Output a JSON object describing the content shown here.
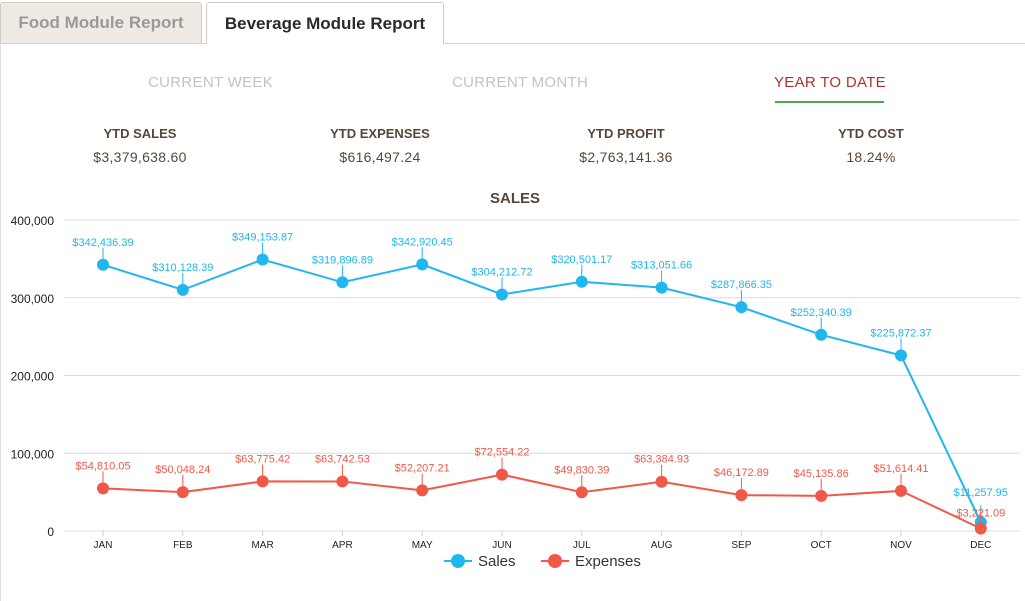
{
  "tabs": [
    {
      "label": "Food Module Report",
      "active": false
    },
    {
      "label": "Beverage Module Report",
      "active": true
    }
  ],
  "periods": {
    "current_week": "CURRENT WEEK",
    "current_month": "CURRENT MONTH",
    "year_to_date": "YEAR TO DATE"
  },
  "stats": [
    {
      "label": "YTD SALES",
      "value": "$3,379,638.60"
    },
    {
      "label": "YTD EXPENSES",
      "value": "$616,497.24"
    },
    {
      "label": "YTD PROFIT",
      "value": "$2,763,141.36"
    },
    {
      "label": "YTD COST",
      "value": "18.24%"
    }
  ],
  "colors": {
    "sales": "#20b6ee",
    "expenses": "#f0584a",
    "active_period": "#b3312b",
    "underline": "#4aa84c",
    "label_brown": "#5a4636"
  },
  "chart_data": {
    "type": "line",
    "title": "SALES",
    "categories": [
      "JAN",
      "FEB",
      "MAR",
      "APR",
      "MAY",
      "JUN",
      "JUL",
      "AUG",
      "SEP",
      "OCT",
      "NOV",
      "DEC"
    ],
    "ylim": [
      0,
      400000
    ],
    "yticks": [
      0,
      100000,
      200000,
      300000,
      400000
    ],
    "ytick_labels": [
      "0",
      "100,000",
      "200,000",
      "300,000",
      "400,000"
    ],
    "grid": true,
    "legend_position": "bottom",
    "series": [
      {
        "name": "Sales",
        "values": [
          342436.39,
          310128.39,
          349153.87,
          319896.89,
          342920.45,
          304212.72,
          320501.17,
          313051.66,
          287866.35,
          252340.39,
          225872.37,
          11257.95
        ],
        "labels": [
          "$342,436.39",
          "$310,128.39",
          "$349,153.87",
          "$319,896.89",
          "$342,920.45",
          "$304,212.72",
          "$320,501.17",
          "$313,051.66",
          "$287,866.35",
          "$252,340.39",
          "$225,872.37",
          "$11,257.95"
        ]
      },
      {
        "name": "Expenses",
        "values": [
          54810.05,
          50048.24,
          63775.42,
          63742.53,
          52207.21,
          72554.22,
          49830.39,
          63384.93,
          46172.89,
          45135.86,
          51614.41,
          3221.09
        ],
        "labels": [
          "$54,810.05",
          "$50,048.24",
          "$63,775.42",
          "$63,742.53",
          "$52,207.21",
          "$72,554.22",
          "$49,830.39",
          "$63,384.93",
          "$46,172.89",
          "$45,135.86",
          "$51,614.41",
          "$3,221.09"
        ]
      }
    ]
  }
}
